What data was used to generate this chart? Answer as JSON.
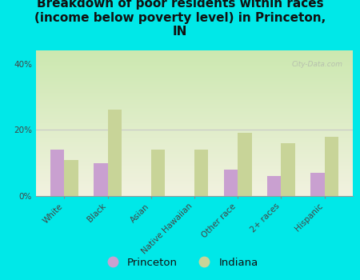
{
  "title": "Breakdown of poor residents within races\n(income below poverty level) in Princeton,\nIN",
  "categories": [
    "White",
    "Black",
    "Asian",
    "Native Hawaiian",
    "Other race",
    "2+ races",
    "Hispanic"
  ],
  "princeton_values": [
    14,
    10,
    0,
    0,
    8,
    6,
    7
  ],
  "indiana_values": [
    11,
    26,
    14,
    14,
    19,
    16,
    18
  ],
  "princeton_color": "#c9a0d0",
  "indiana_color": "#c8d498",
  "bg_color": "#00e8e8",
  "plot_bg_top": "#cce8b0",
  "plot_bg_bottom": "#f2f2e0",
  "grid_color": "#c8c8c8",
  "yticks": [
    0,
    20,
    40
  ],
  "ylim": [
    0,
    44
  ],
  "bar_width": 0.32,
  "watermark": "City-Data.com",
  "title_fontsize": 11,
  "tick_fontsize": 7.5
}
